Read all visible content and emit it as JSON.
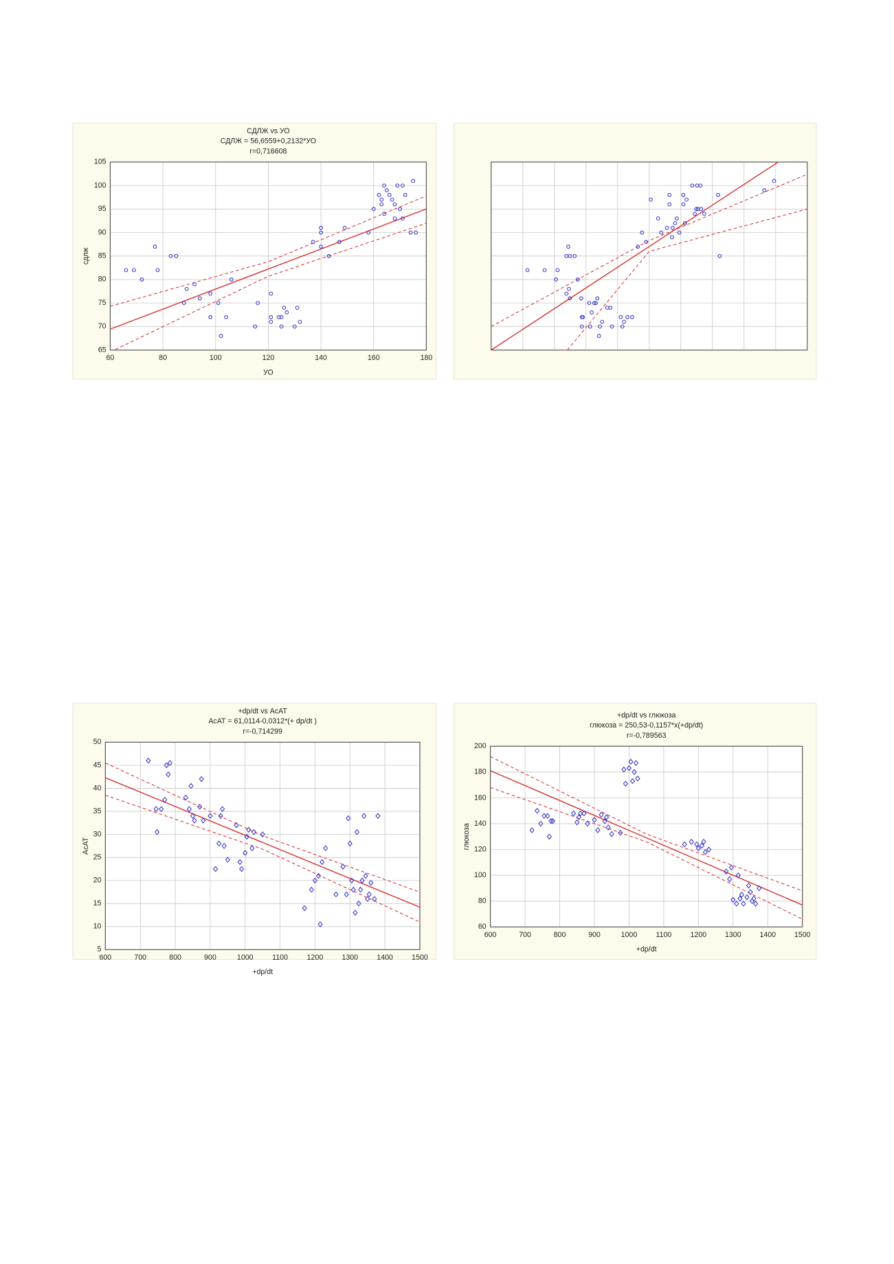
{
  "chart_data": [
    {
      "type": "scatter",
      "title": "СДЛЖ vs УО",
      "equation": "СДЛЖ = 56,6559+0,2132*УО",
      "r": "r=0,716608",
      "x_label": "УО",
      "y_label": "сдлж",
      "marker": "circle",
      "color": "#3636c8",
      "line_color": "#d83030",
      "tick_labels": true,
      "grid": true,
      "xlim": [
        60,
        180
      ],
      "xticks": [
        60,
        80,
        100,
        120,
        140,
        160,
        180
      ],
      "ylim": [
        65,
        105
      ],
      "yticks": [
        65,
        70,
        75,
        80,
        85,
        90,
        95,
        100,
        105
      ],
      "x": [
        66,
        69,
        72,
        77,
        78,
        83,
        85,
        88,
        89,
        92,
        94,
        98,
        98,
        101,
        102,
        104,
        106,
        115,
        116,
        121,
        121,
        121,
        124,
        125,
        125,
        126,
        127,
        130,
        131,
        132,
        137,
        140,
        140,
        140,
        143,
        147,
        149,
        158,
        160,
        162,
        163,
        163,
        164,
        164,
        165,
        166,
        167,
        168,
        168,
        169,
        170,
        171,
        171,
        172,
        174,
        175,
        176
      ],
      "values": [
        82,
        82,
        80,
        87,
        82,
        85,
        85,
        75,
        78,
        79,
        76,
        77,
        72,
        75,
        68,
        72,
        80,
        70,
        75,
        77,
        72,
        71,
        72,
        70,
        72,
        74,
        73,
        70,
        74,
        71,
        88,
        91,
        90,
        87,
        85,
        88,
        91,
        90,
        95,
        98,
        97,
        96,
        100,
        94,
        99,
        98,
        97,
        93,
        96,
        100,
        95,
        100,
        93,
        98,
        90,
        101,
        90
      ],
      "fit": {
        "x": [
          60,
          180
        ],
        "y": [
          69.45,
          95.03
        ]
      },
      "upper": {
        "x": [
          60,
          120,
          180
        ],
        "y": [
          74.3,
          83.8,
          97.8
        ]
      },
      "lower": {
        "x": [
          60,
          120,
          180
        ],
        "y": [
          64.6,
          80.7,
          92.0
        ]
      }
    },
    {
      "type": "scatter",
      "marker": "circle",
      "color": "#3636c8",
      "line_color": "#d83030",
      "tick_labels": false,
      "grid": true,
      "xlim": [
        600,
        1600
      ],
      "xticks": [
        700,
        800,
        900,
        1000,
        1100,
        1200,
        1300,
        1400,
        1500
      ],
      "ylim": [
        65,
        105
      ],
      "yticks": [
        70,
        75,
        80,
        85,
        90,
        95,
        100
      ],
      "x": [
        715,
        769,
        805,
        810,
        838,
        844,
        849,
        864,
        838,
        846,
        849,
        874,
        885,
        887,
        887,
        890,
        910,
        913,
        918,
        926,
        931,
        936,
        941,
        944,
        951,
        967,
        977,
        982,
        1010,
        1015,
        1020,
        1031,
        1046,
        1064,
        1077,
        1090,
        1105,
        1128,
        1138,
        1156,
        1164,
        1164,
        1172,
        1174,
        1182,
        1187,
        1195,
        1208,
        1208,
        1213,
        1218,
        1236,
        1244,
        1249,
        1251,
        1254,
        1262,
        1264,
        1274,
        1318,
        1323,
        1464,
        1495
      ],
      "values": [
        82,
        82,
        80,
        82,
        85,
        87,
        85,
        85,
        77,
        78,
        76,
        80,
        76,
        72,
        70,
        72,
        75,
        70,
        73,
        75,
        75,
        76,
        68,
        70,
        71,
        74,
        74,
        70,
        72,
        70,
        71,
        72,
        72,
        87,
        90,
        88,
        97,
        93,
        90,
        91,
        96,
        98,
        89,
        91,
        92,
        93,
        90,
        96,
        98,
        92,
        97,
        100,
        94,
        95,
        100,
        95,
        100,
        95,
        94,
        98,
        85,
        99,
        101
      ],
      "fit": {
        "x": [
          600,
          1508
        ],
        "y": [
          65,
          105
        ]
      },
      "upper": {
        "x": [
          600,
          1100,
          1600
        ],
        "y": [
          70,
          88.3,
          102.4
        ]
      },
      "lower": {
        "x": [
          841,
          1100,
          1600
        ],
        "y": [
          65,
          86,
          95
        ]
      }
    },
    {
      "type": "scatter",
      "title": "+dp/dt vs  АсАТ",
      "equation": "АсАТ = 61,0114-0,0312*(+    dp/dt )",
      "r": "r=-0,714299",
      "x_label": "+dp/dt",
      "y_label": "АсАТ",
      "marker": "diamond",
      "color": "#3636c8",
      "line_color": "#d83030",
      "tick_labels": true,
      "grid": true,
      "xlim": [
        600,
        1500
      ],
      "xticks": [
        600,
        700,
        800,
        900,
        1000,
        1100,
        1200,
        1300,
        1400,
        1500
      ],
      "ylim": [
        5,
        50
      ],
      "yticks": [
        5,
        10,
        15,
        20,
        25,
        30,
        35,
        40,
        45,
        50
      ],
      "x": [
        723,
        745,
        748,
        760,
        770,
        775,
        780,
        785,
        830,
        840,
        845,
        850,
        855,
        870,
        875,
        880,
        900,
        915,
        925,
        930,
        935,
        940,
        950,
        975,
        985,
        990,
        1000,
        1005,
        1010,
        1020,
        1025,
        1050,
        1170,
        1190,
        1200,
        1210,
        1215,
        1220,
        1230,
        1260,
        1280,
        1290,
        1295,
        1300,
        1305,
        1310,
        1315,
        1320,
        1325,
        1330,
        1335,
        1340,
        1345,
        1350,
        1355,
        1360,
        1370,
        1380
      ],
      "values": [
        46,
        35.5,
        30.5,
        35.5,
        37.5,
        45,
        43,
        45.5,
        38,
        35.5,
        40.5,
        34,
        33,
        36,
        42,
        33,
        34,
        22.5,
        28,
        34,
        35.5,
        27.5,
        24.5,
        32,
        24,
        22.5,
        26,
        29.5,
        31,
        27,
        30.5,
        30,
        14,
        18,
        20,
        21,
        10.5,
        24,
        27,
        17,
        23,
        17,
        33.5,
        28,
        20,
        18,
        13,
        30.5,
        15,
        18,
        20,
        34,
        21,
        16,
        17,
        19.5,
        16,
        34
      ],
      "fit": {
        "x": [
          600,
          1500
        ],
        "y": [
          42.29,
          14.21
        ]
      },
      "upper": {
        "x": [
          600,
          1050,
          1500
        ],
        "y": [
          45.5,
          29.7,
          17.5
        ]
      },
      "lower": {
        "x": [
          600,
          1050,
          1500
        ],
        "y": [
          38.5,
          26.8,
          11
        ]
      }
    },
    {
      "type": "scatter",
      "title": "+dp/dt vs глюкоза",
      "equation": "глюкоза = 250,53-0,1157*x(+dp/dt)",
      "r": "r=-0,789563",
      "x_label": "+dp/dt",
      "y_label": "глюкоза",
      "marker": "diamond",
      "color": "#3636c8",
      "line_color": "#d83030",
      "tick_labels": true,
      "grid": true,
      "xlim": [
        600,
        1500
      ],
      "xticks": [
        600,
        700,
        800,
        900,
        1000,
        1100,
        1200,
        1300,
        1400,
        1500
      ],
      "ylim": [
        60,
        200
      ],
      "yticks": [
        60,
        80,
        100,
        120,
        140,
        160,
        180,
        200
      ],
      "x": [
        720,
        735,
        745,
        755,
        765,
        770,
        775,
        780,
        840,
        850,
        855,
        860,
        870,
        880,
        900,
        910,
        920,
        930,
        935,
        940,
        950,
        975,
        985,
        990,
        1000,
        1005,
        1010,
        1015,
        1020,
        1025,
        1160,
        1180,
        1195,
        1200,
        1210,
        1215,
        1220,
        1230,
        1280,
        1290,
        1295,
        1300,
        1310,
        1315,
        1320,
        1325,
        1330,
        1340,
        1345,
        1350,
        1355,
        1360,
        1365,
        1375
      ],
      "values": [
        135,
        150,
        140,
        146,
        146,
        130,
        142,
        142,
        148,
        141,
        145,
        148,
        148,
        140,
        143,
        135,
        147,
        142,
        145,
        137,
        132,
        133,
        182,
        171,
        183,
        188,
        173,
        180,
        187,
        175,
        124,
        126,
        124,
        121,
        123,
        126,
        118,
        120,
        103,
        97,
        106,
        81,
        78,
        100,
        82,
        85,
        78,
        83,
        92,
        87,
        80,
        82,
        78,
        90
      ],
      "fit": {
        "x": [
          600,
          1500
        ],
        "y": [
          181.1,
          76.98
        ]
      },
      "upper": {
        "x": [
          600,
          1050,
          1500
        ],
        "y": [
          192,
          132,
          88
        ]
      },
      "lower": {
        "x": [
          600,
          1050,
          1500
        ],
        "y": [
          168,
          126,
          66
        ]
      }
    }
  ]
}
